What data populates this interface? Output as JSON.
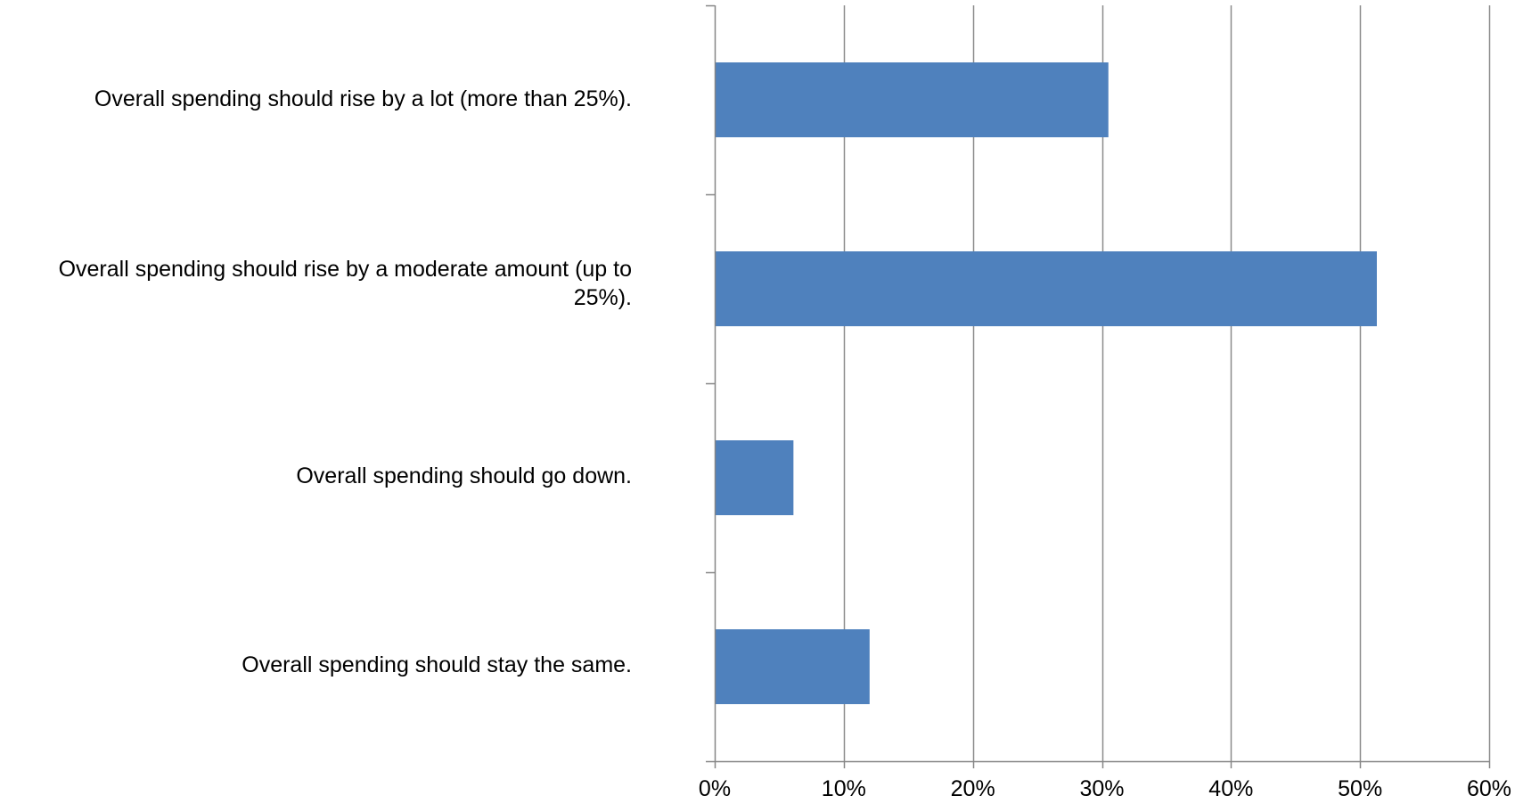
{
  "chart_data": {
    "type": "bar",
    "orientation": "horizontal",
    "categories": [
      "Overall spending should rise by a lot (more than 25%).",
      "Overall spending should rise by a moderate amount (up to 25%).",
      "Overall spending should go down.",
      "Overall spending should stay the same."
    ],
    "values": [
      30.5,
      51.3,
      6.1,
      12.0
    ],
    "value_unit": "%",
    "xlim": [
      0,
      60
    ],
    "x_ticks": [
      0,
      10,
      20,
      30,
      40,
      50,
      60
    ],
    "x_tick_labels": [
      "0%",
      "10%",
      "20%",
      "30%",
      "40%",
      "50%",
      "60%"
    ],
    "grid": "vertical",
    "legend": "none",
    "colors": {
      "bar": "#4F81BD",
      "grid": "#8C8C8C",
      "axis": "#868686"
    }
  }
}
